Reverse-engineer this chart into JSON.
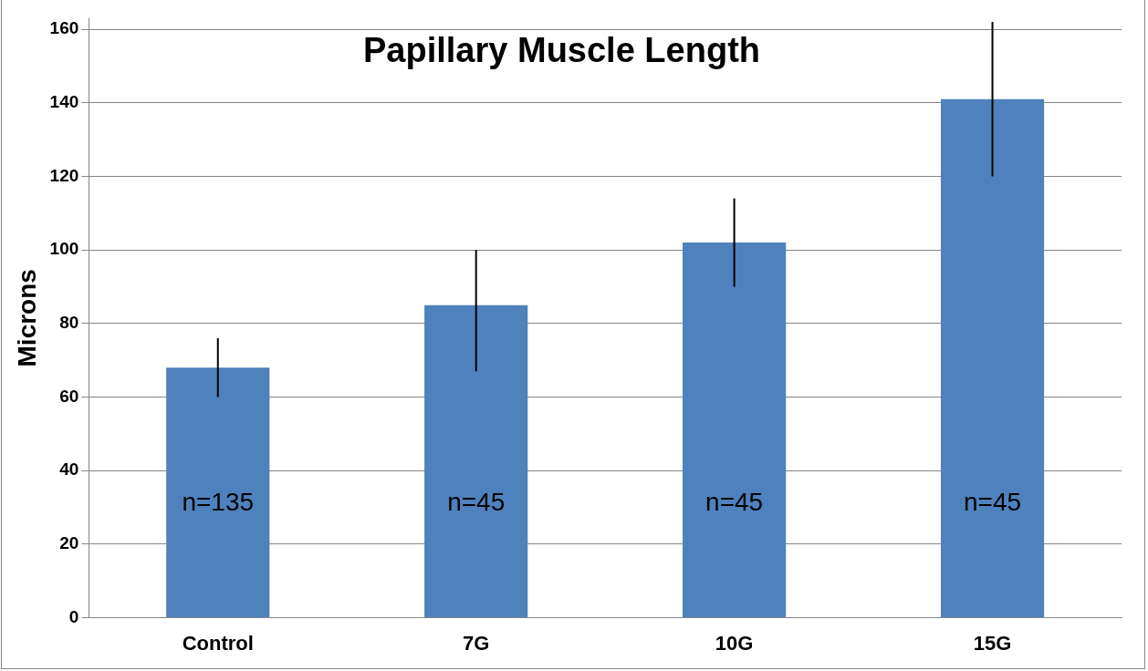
{
  "chart_data": {
    "type": "bar",
    "title": "Papillary Muscle Length",
    "ylabel": "Microns",
    "categories": [
      "Control",
      "7G",
      "10G",
      "15G"
    ],
    "values": [
      68,
      85,
      102,
      141
    ],
    "errors": [
      [
        60,
        76
      ],
      [
        67,
        100
      ],
      [
        90,
        114
      ],
      [
        120,
        162
      ]
    ],
    "color": "#4f81bd",
    "ylim": [
      0,
      163
    ],
    "yticks": [
      0,
      20,
      40,
      60,
      80,
      100,
      120,
      140,
      160
    ],
    "grid": "y",
    "annotations": [
      "n=135",
      "n=45",
      "n=45",
      "n=45"
    ]
  }
}
